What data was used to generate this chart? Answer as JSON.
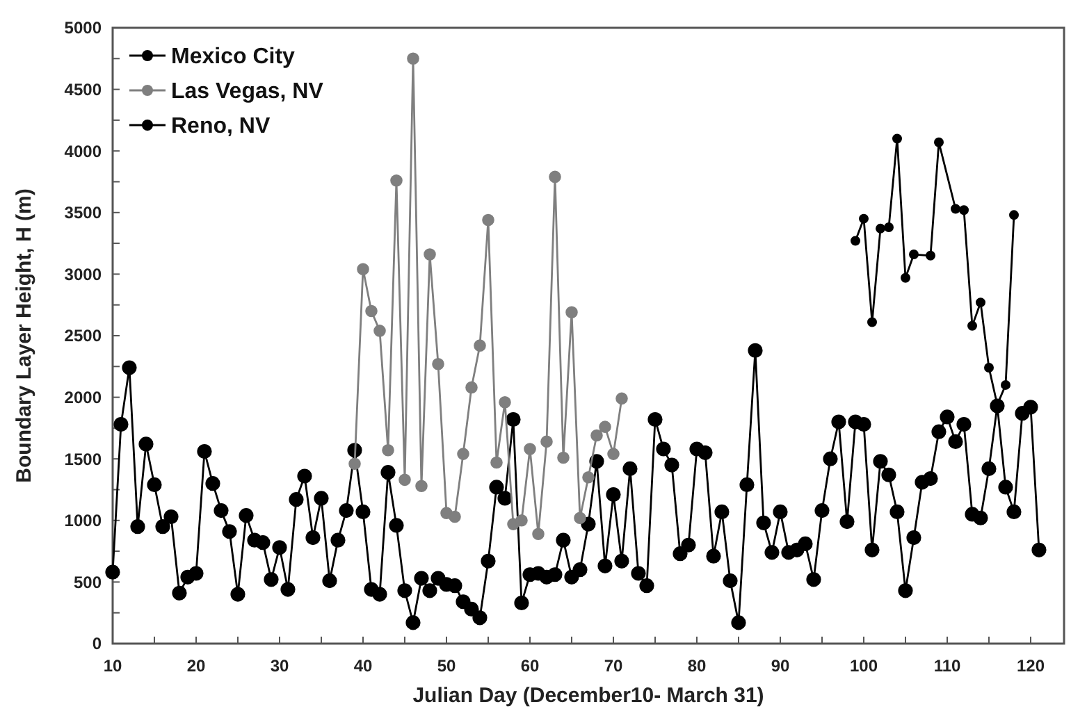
{
  "chart_data": {
    "type": "line",
    "xlabel": "Julian Day (December10- March 31)",
    "ylabel": "Boundary Layer Height, H (m)",
    "xlim": [
      10,
      124
    ],
    "xticks": [
      10,
      {
        "value": 15,
        "label": null
      },
      20,
      {
        "value": 25,
        "label": null
      },
      30,
      {
        "value": 35,
        "label": null
      },
      40,
      {
        "value": 45,
        "label": null
      },
      50,
      {
        "value": 55,
        "label": null
      },
      60,
      {
        "value": 65,
        "label": null
      },
      70,
      {
        "value": 75,
        "label": null
      },
      80,
      {
        "value": 85,
        "label": null
      },
      90,
      {
        "value": 95,
        "label": null
      },
      100,
      {
        "value": 105,
        "label": null
      },
      110,
      {
        "value": 115,
        "label": null
      },
      120
    ],
    "ylim": [
      0,
      5000
    ],
    "yticks": [
      0,
      {
        "value": 250,
        "label": null
      },
      500,
      {
        "value": 750,
        "label": null
      },
      1000,
      {
        "value": 1250,
        "label": null
      },
      1500,
      {
        "value": 1750,
        "label": null
      },
      2000,
      {
        "value": 2250,
        "label": null
      },
      2500,
      {
        "value": 2750,
        "label": null
      },
      3000,
      {
        "value": 3250,
        "label": null
      },
      3500,
      {
        "value": 3750,
        "label": null
      },
      4000,
      {
        "value": 4250,
        "label": null
      },
      4500,
      {
        "value": 4750,
        "label": null
      },
      5000
    ],
    "grid": false,
    "legend": "top left",
    "marker": "circle",
    "line_style": "solid",
    "series": [
      {
        "name": "Mexico City",
        "color": "#000000",
        "x": [
          99,
          100,
          101,
          102,
          103,
          104,
          105,
          106,
          108,
          109,
          111,
          112,
          113,
          114,
          115,
          116,
          117,
          118
        ],
        "values": [
          3270,
          3450,
          2610,
          3370,
          3380,
          4100,
          2970,
          3160,
          3150,
          4070,
          3530,
          3520,
          2580,
          2770,
          2240,
          1940,
          2100,
          3480
        ]
      },
      {
        "name": "Las Vegas, NV",
        "color": "#7f7f7f",
        "x": [
          39,
          40,
          41,
          42,
          43,
          44,
          45,
          46,
          47,
          48,
          49,
          50,
          51,
          52,
          53,
          54,
          55,
          56,
          57,
          58,
          59,
          60,
          61,
          62,
          63,
          64,
          65,
          66,
          67,
          68,
          69,
          70,
          71
        ],
        "values": [
          1460,
          3040,
          2700,
          2540,
          1570,
          3760,
          1330,
          4750,
          1280,
          3160,
          2270,
          1060,
          1030,
          1540,
          2080,
          2420,
          3440,
          1470,
          1960,
          970,
          1000,
          1580,
          890,
          1640,
          3790,
          1510,
          2690,
          1020,
          1350,
          1690,
          1760,
          1540,
          1990
        ]
      },
      {
        "name": "Reno, NV",
        "color": "#000000",
        "x": [
          10,
          11,
          12,
          13,
          14,
          15,
          16,
          17,
          18,
          19,
          20,
          21,
          22,
          23,
          24,
          25,
          26,
          27,
          28,
          29,
          30,
          31,
          32,
          33,
          34,
          35,
          36,
          37,
          38,
          39,
          40,
          41,
          42,
          43,
          44,
          45,
          46,
          47,
          48,
          49,
          50,
          51,
          52,
          53,
          54,
          55,
          56,
          57,
          58,
          59,
          60,
          61,
          62,
          63,
          64,
          65,
          66,
          67,
          68,
          69,
          70,
          71,
          72,
          73,
          74,
          75,
          76,
          77,
          78,
          79,
          80,
          81,
          82,
          83,
          84,
          85,
          86,
          87,
          88,
          89,
          90,
          91,
          92,
          93,
          94,
          95,
          96,
          97,
          98,
          99,
          100,
          101,
          102,
          103,
          104,
          105,
          106,
          107,
          108,
          109,
          110,
          111,
          112,
          113,
          114,
          115,
          116,
          117,
          118,
          119,
          120,
          121
        ],
        "values": [
          580,
          1780,
          2240,
          950,
          1620,
          1290,
          950,
          1030,
          410,
          540,
          570,
          1560,
          1300,
          1080,
          910,
          400,
          1040,
          840,
          820,
          520,
          780,
          440,
          1170,
          1360,
          860,
          1180,
          510,
          840,
          1080,
          1570,
          1070,
          440,
          400,
          1390,
          960,
          430,
          170,
          530,
          430,
          530,
          480,
          470,
          340,
          280,
          210,
          670,
          1270,
          1180,
          1820,
          330,
          560,
          570,
          540,
          560,
          840,
          540,
          600,
          970,
          1480,
          630,
          1210,
          670,
          1420,
          570,
          470,
          1820,
          1580,
          1450,
          730,
          800,
          1580,
          1550,
          710,
          1070,
          510,
          170,
          1290,
          2380,
          980,
          740,
          1070,
          740,
          760,
          810,
          520,
          1080,
          1500,
          1800,
          990,
          1800,
          1780,
          760,
          1480,
          1370,
          1070,
          430,
          860,
          1310,
          1340,
          1720,
          1840,
          1640,
          1780,
          1050,
          1020,
          1420,
          1930,
          1270,
          1070,
          1870,
          1920,
          760
        ]
      }
    ]
  }
}
